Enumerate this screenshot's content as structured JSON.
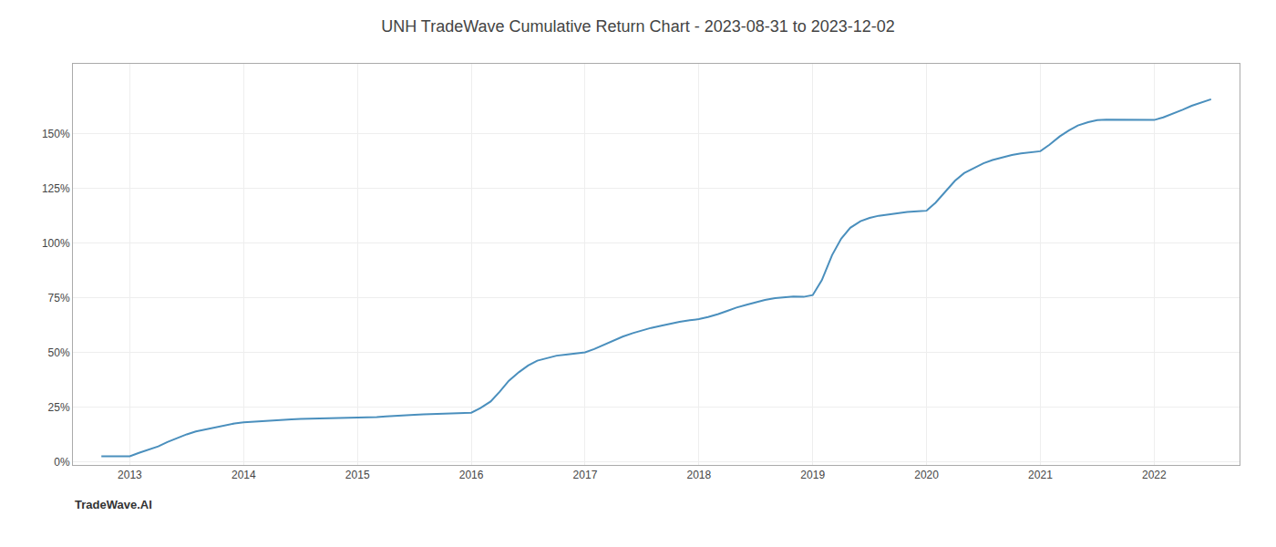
{
  "chart_data": {
    "type": "line",
    "title": "UNH TradeWave Cumulative Return Chart - 2023-08-31 to 2023-12-02",
    "annotations": [
      "TradeWave.AI"
    ],
    "color": "#4a8fbd",
    "grid": true,
    "x": [
      2012.75,
      2013.0,
      2013.08,
      2013.17,
      2013.25,
      2013.33,
      2013.42,
      2013.5,
      2013.58,
      2013.67,
      2013.75,
      2013.83,
      2013.92,
      2014.0,
      2014.08,
      2014.17,
      2014.25,
      2014.33,
      2014.42,
      2014.5,
      2014.58,
      2014.67,
      2014.75,
      2014.83,
      2014.92,
      2015.0,
      2015.08,
      2015.17,
      2015.25,
      2015.33,
      2015.42,
      2015.5,
      2015.58,
      2015.67,
      2015.75,
      2015.83,
      2015.92,
      2016.0,
      2016.08,
      2016.17,
      2016.25,
      2016.33,
      2016.42,
      2016.5,
      2016.58,
      2016.67,
      2016.75,
      2016.83,
      2016.92,
      2017.0,
      2017.08,
      2017.17,
      2017.25,
      2017.33,
      2017.42,
      2017.5,
      2017.58,
      2017.67,
      2017.75,
      2017.83,
      2017.92,
      2018.0,
      2018.08,
      2018.17,
      2018.25,
      2018.33,
      2018.42,
      2018.5,
      2018.58,
      2018.67,
      2018.75,
      2018.83,
      2018.92,
      2019.0,
      2019.08,
      2019.17,
      2019.25,
      2019.33,
      2019.42,
      2019.5,
      2019.58,
      2019.67,
      2019.75,
      2019.83,
      2019.92,
      2020.0,
      2020.08,
      2020.17,
      2020.25,
      2020.33,
      2020.42,
      2020.5,
      2020.58,
      2020.67,
      2020.75,
      2020.83,
      2020.92,
      2021.0,
      2021.08,
      2021.17,
      2021.25,
      2021.33,
      2021.42,
      2021.5,
      2021.58,
      2021.67,
      2021.75,
      2021.83,
      2021.92,
      2022.0,
      2022.08,
      2022.17,
      2022.25,
      2022.33,
      2022.42,
      2022.5
    ],
    "values": [
      0.025,
      0.025,
      0.04,
      0.055,
      0.07,
      0.09,
      0.11,
      0.125,
      0.138,
      0.148,
      0.158,
      0.168,
      0.175,
      0.18,
      0.183,
      0.187,
      0.19,
      0.192,
      0.194,
      0.196,
      0.197,
      0.198,
      0.199,
      0.2,
      0.2,
      0.2,
      0.202,
      0.204,
      0.207,
      0.21,
      0.212,
      0.214,
      0.216,
      0.218,
      0.22,
      0.221,
      0.222,
      0.224,
      0.245,
      0.275,
      0.32,
      0.37,
      0.41,
      0.44,
      0.462,
      0.475,
      0.485,
      0.49,
      0.495,
      0.5,
      0.515,
      0.535,
      0.555,
      0.572,
      0.588,
      0.6,
      0.612,
      0.622,
      0.632,
      0.64,
      0.647,
      0.652,
      0.662,
      0.675,
      0.69,
      0.705,
      0.718,
      0.73,
      0.74,
      0.748,
      0.753,
      0.756,
      0.754,
      0.762,
      0.83,
      0.945,
      1.02,
      1.07,
      1.1,
      1.115,
      1.125,
      1.132,
      1.138,
      1.142,
      1.145,
      1.148,
      1.185,
      1.24,
      1.285,
      1.32,
      1.345,
      1.365,
      1.38,
      1.393,
      1.403,
      1.41,
      1.416,
      1.42,
      1.45,
      1.488,
      1.515,
      1.538,
      1.553,
      1.562,
      1.565,
      1.565,
      1.564,
      1.563,
      1.562,
      1.563,
      1.575,
      1.592,
      1.61,
      1.628,
      1.645,
      1.658
    ],
    "xlim": [
      2012.5,
      2022.75
    ],
    "xticks": [
      2013,
      2014,
      2015,
      2016,
      2017,
      2018,
      2019,
      2020,
      2021,
      2022
    ],
    "ylim": [
      -0.015,
      1.82
    ],
    "yticks": [
      {
        "value": 0.0,
        "label": "0%"
      },
      {
        "value": 0.25,
        "label": "25%"
      },
      {
        "value": 0.5,
        "label": "50%"
      },
      {
        "value": 0.75,
        "label": "75%"
      },
      {
        "value": 1.0,
        "label": "100%"
      },
      {
        "value": 1.25,
        "label": "125%"
      },
      {
        "value": 1.5,
        "label": "150%"
      }
    ]
  }
}
